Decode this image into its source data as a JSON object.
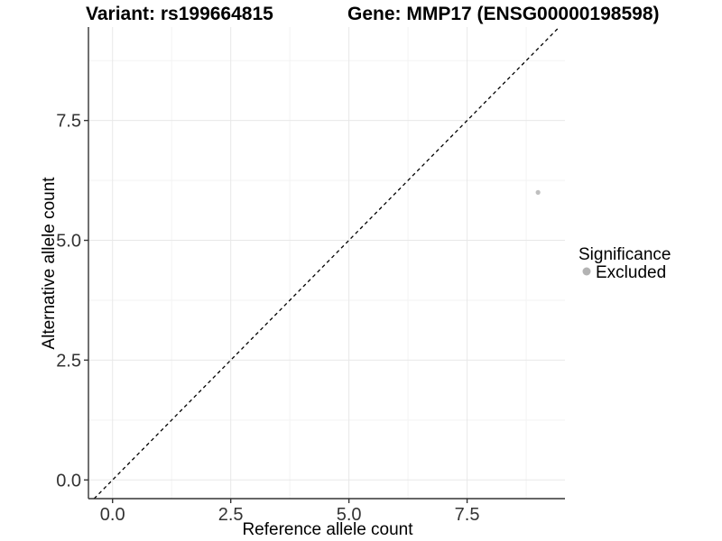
{
  "figure": {
    "background": "#ffffff"
  },
  "chart_data": {
    "type": "scatter",
    "title_parts": [
      "Variant: rs199664815",
      "Gene: MMP17 (ENSG00000198598)"
    ],
    "title": "Variant: rs199664815    Gene: MMP17 (ENSG00000198598)",
    "xlabel": "Reference allele count",
    "ylabel": "Alternative allele count",
    "xlim": [
      -0.51,
      9.57
    ],
    "ylim": [
      -0.39,
      9.45
    ],
    "x_ticks": {
      "values": [
        0,
        2.5,
        5,
        7.5
      ],
      "labels": [
        "0.0",
        "2.5",
        "5.0",
        "7.5"
      ]
    },
    "y_ticks": {
      "values": [
        0,
        2.5,
        5,
        7.5
      ],
      "labels": [
        "0.0",
        "2.5",
        "5.0",
        "7.5"
      ]
    },
    "x_minor_ticks": [
      1.25,
      3.75,
      6.25,
      8.75
    ],
    "y_minor_ticks": [
      1.25,
      3.75,
      6.25,
      8.75
    ],
    "grid": true,
    "points": [
      {
        "x": 9,
        "y": 6,
        "series": "Excluded"
      }
    ],
    "reference_line": {
      "type": "identity",
      "slope": 1,
      "intercept": 0,
      "style": "dashed"
    },
    "legend": {
      "title": "Significance",
      "position": "right",
      "entries": [
        {
          "label": "Excluded",
          "color": "#b3b3b3"
        }
      ]
    },
    "colors": {
      "point": "#bfbfbf",
      "reference_line": "#000000",
      "grid_major": "#e8e8e8",
      "grid_minor": "#f3f3f3",
      "axis_line": "#333333",
      "tick_text": "#333333",
      "background": "#ffffff"
    }
  }
}
